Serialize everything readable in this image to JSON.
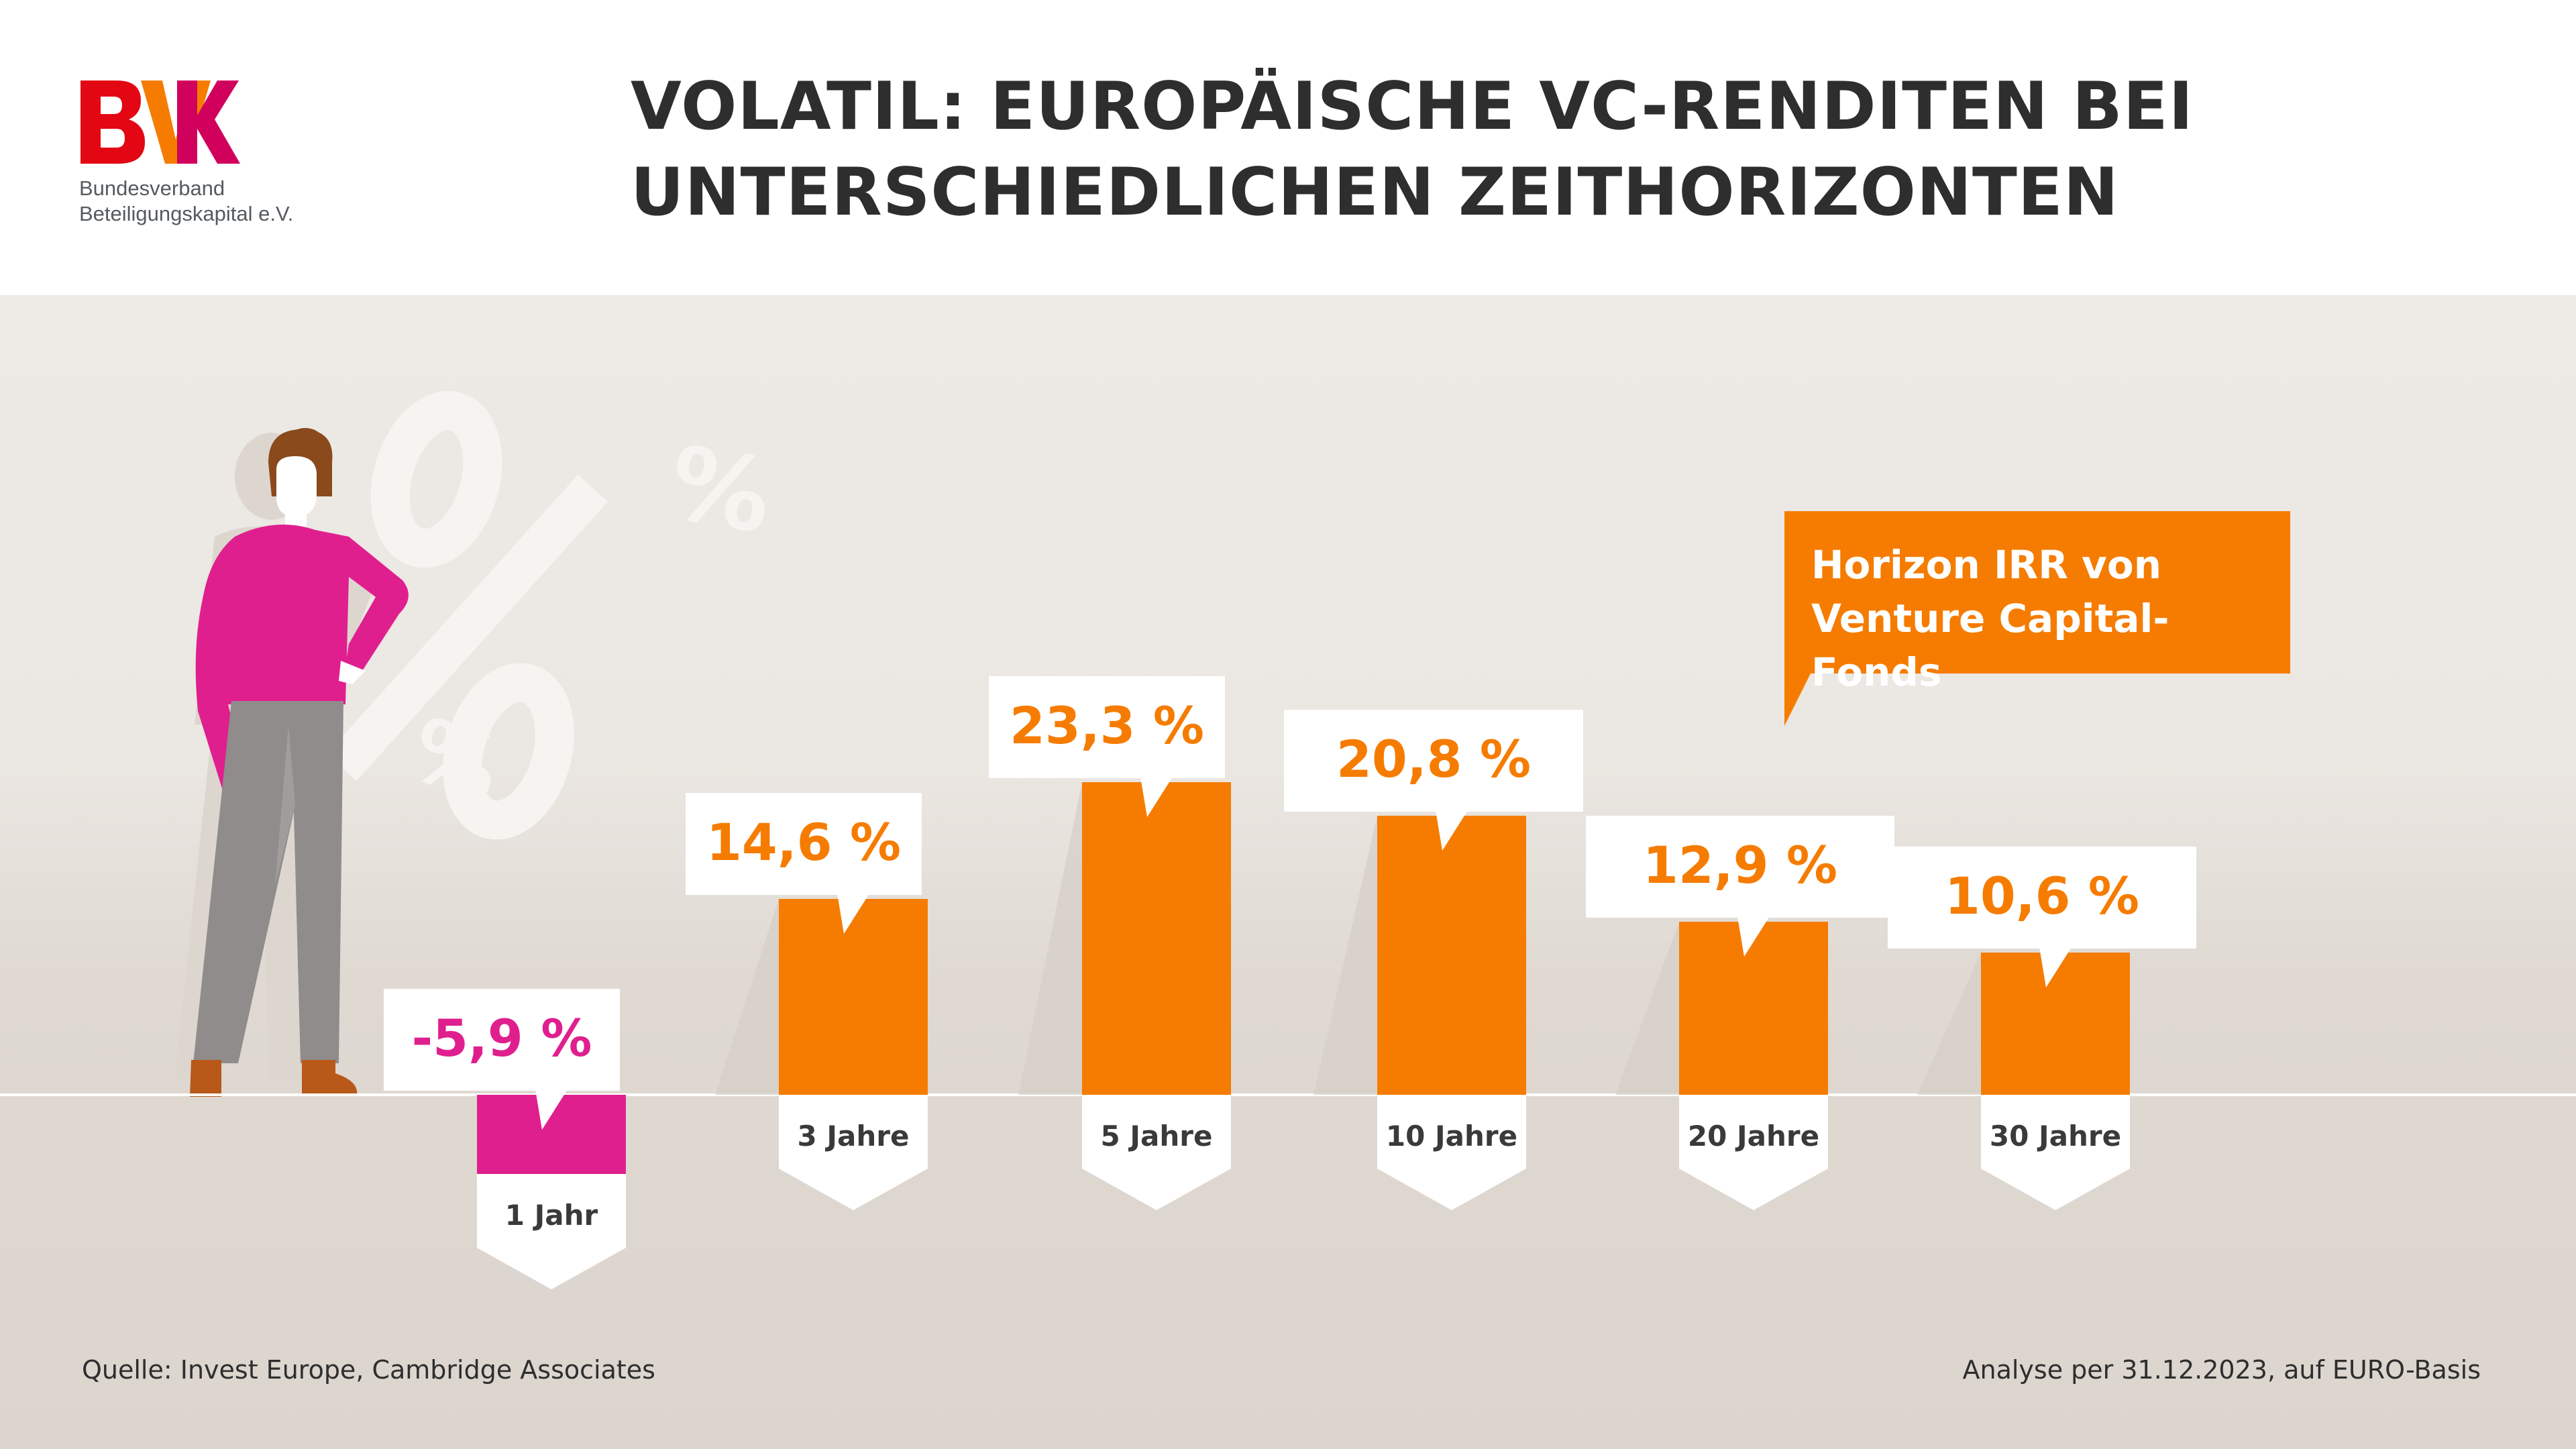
{
  "logo": {
    "mark": "BVK",
    "line1": "Bundesverband",
    "line2": "Beteiligungskapital e.V."
  },
  "title": {
    "line1": "VOLATIL: EUROPÄISCHE VC-RENDITEN BEI",
    "line2": "UNTERSCHIEDLICHEN ZEITHORIZONTEN"
  },
  "legend": {
    "text": "Horizon IRR von\nVenture Capital-Fonds"
  },
  "footer": {
    "source": "Quelle: Invest Europe, Cambridge Associates",
    "analysis": "Analyse per 31.12.2023, auf EURO-Basis"
  },
  "colors": {
    "positive": "#f57c00",
    "negative": "#e01f8e",
    "text_dark": "#2e2e2e",
    "logo_red": "#e30613"
  },
  "chart_data": {
    "type": "bar",
    "title": "VOLATIL: EUROPÄISCHE VC-RENDITEN BEI UNTERSCHIEDLICHEN ZEITHORIZONTEN",
    "categories": [
      "1 Jahr",
      "3 Jahre",
      "5 Jahre",
      "10 Jahre",
      "20 Jahre",
      "30 Jahre"
    ],
    "series": [
      {
        "name": "Horizon IRR von Venture Capital-Fonds",
        "values": [
          -5.9,
          14.6,
          23.3,
          20.8,
          12.9,
          10.6
        ]
      }
    ],
    "data_labels": [
      "-5,9 %",
      "14,6 %",
      "23,3 %",
      "20,8 %",
      "12,9 %",
      "10,6 %"
    ],
    "unit": "%",
    "xlabel": "",
    "ylabel": "",
    "grid": false,
    "legend_position": "top-right"
  }
}
